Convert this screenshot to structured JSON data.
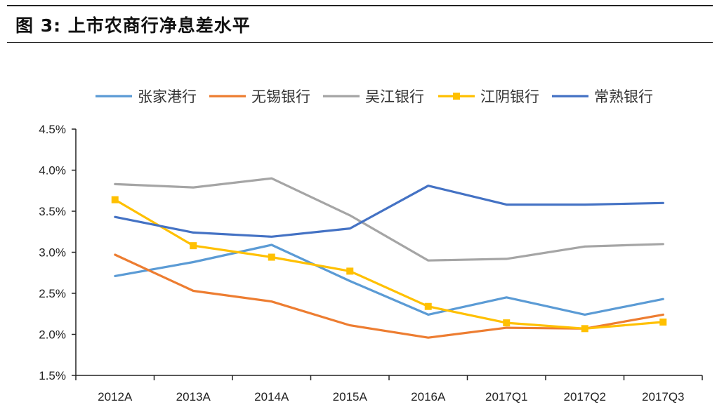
{
  "figure": {
    "title": "图 3:  上市农商行净息差水平"
  },
  "chart_data": {
    "type": "line",
    "title": "",
    "xlabel": "",
    "ylabel": "",
    "categories": [
      "2012A",
      "2013A",
      "2014A",
      "2015A",
      "2016A",
      "2017Q1",
      "2017Q2",
      "2017Q3"
    ],
    "y_ticks": [
      "1.5%",
      "2.0%",
      "2.5%",
      "3.0%",
      "3.5%",
      "4.0%",
      "4.5%"
    ],
    "ylim": [
      1.5,
      4.5
    ],
    "y_unit": "%",
    "grid": false,
    "legend_position": "top",
    "series": [
      {
        "name": "张家港行",
        "color": "#5B9BD5",
        "marker": "none",
        "values": [
          2.71,
          2.88,
          3.09,
          2.65,
          2.24,
          2.45,
          2.24,
          2.43
        ]
      },
      {
        "name": "无锡银行",
        "color": "#ED7D31",
        "marker": "none",
        "values": [
          2.97,
          2.53,
          2.4,
          2.11,
          1.96,
          2.08,
          2.07,
          2.24
        ]
      },
      {
        "name": "吴江银行",
        "color": "#A5A5A5",
        "marker": "none",
        "values": [
          3.83,
          3.79,
          3.9,
          3.45,
          2.9,
          2.92,
          3.07,
          3.1
        ]
      },
      {
        "name": "江阴银行",
        "color": "#FFC000",
        "marker": "square",
        "values": [
          3.64,
          3.08,
          2.94,
          2.77,
          2.34,
          2.14,
          2.07,
          2.15
        ]
      },
      {
        "name": "常熟银行",
        "color": "#4472C4",
        "marker": "none",
        "values": [
          3.43,
          3.24,
          3.19,
          3.29,
          3.81,
          3.58,
          3.58,
          3.6
        ]
      }
    ]
  }
}
